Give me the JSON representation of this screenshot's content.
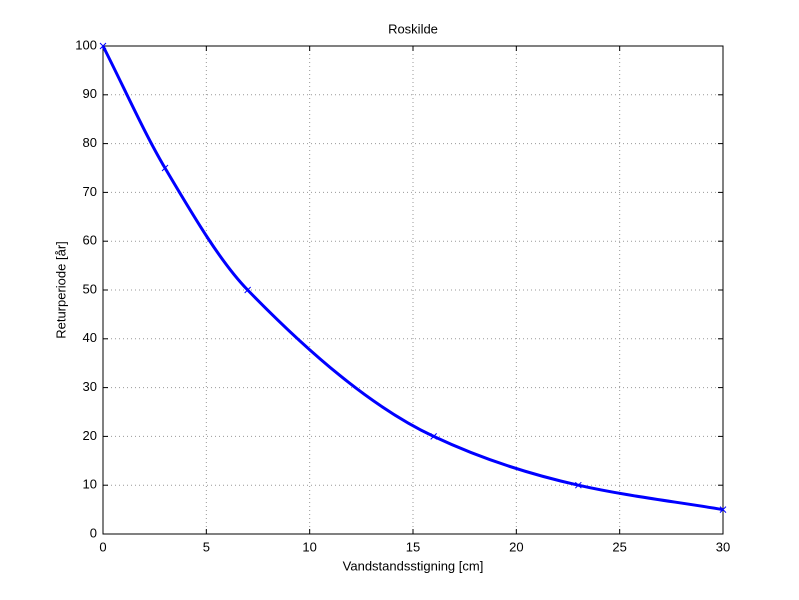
{
  "chart_data": {
    "type": "line",
    "title": "Roskilde",
    "xlabel": "Vandstandsstigning [cm]",
    "ylabel": "Returperiode [år]",
    "x": [
      0,
      3,
      7,
      16,
      23,
      30
    ],
    "series": [
      {
        "color": "#0000ff",
        "marker": "x",
        "values": [
          100,
          75,
          50,
          20,
          10,
          5
        ]
      }
    ],
    "xlim": [
      0,
      30
    ],
    "xticks": [
      0,
      5,
      10,
      15,
      20,
      25,
      30
    ],
    "ylim": [
      0,
      100
    ],
    "yticks": [
      0,
      10,
      20,
      30,
      40,
      50,
      60,
      70,
      80,
      90,
      100
    ],
    "grid": true
  }
}
